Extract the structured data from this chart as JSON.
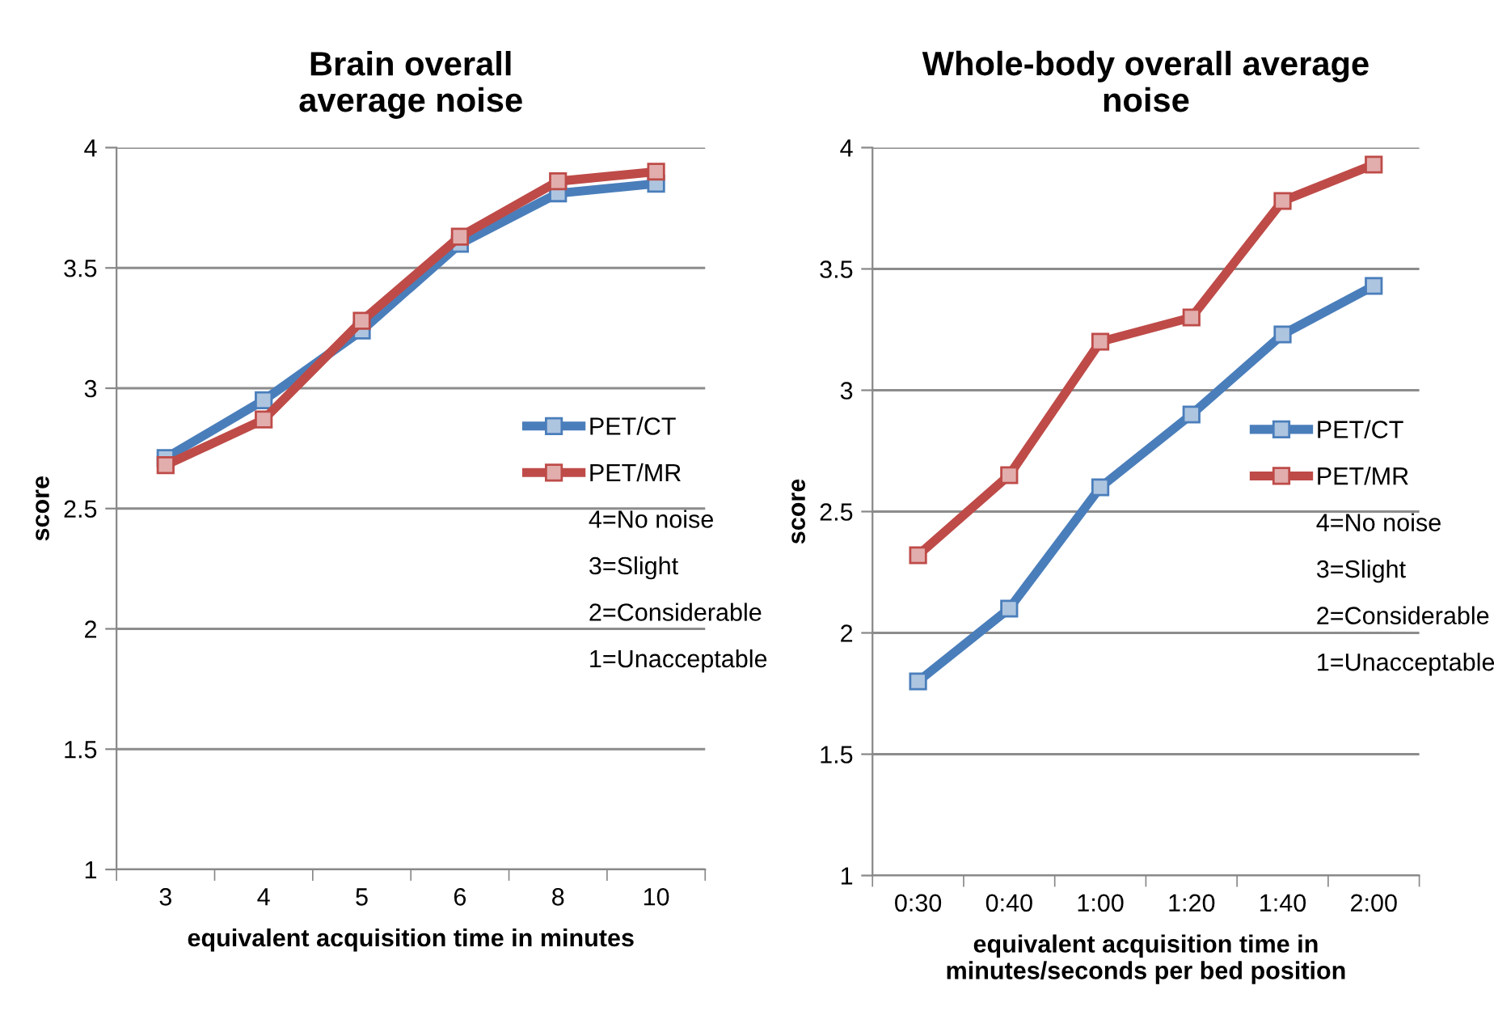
{
  "chart_data": [
    {
      "type": "line",
      "title": "Brain overall\naverage noise",
      "xlabel": "equivalent acquisition time in minutes",
      "ylabel": "score",
      "categories": [
        "3",
        "4",
        "5",
        "6",
        "8",
        "10"
      ],
      "series": [
        {
          "name": "PET/CT",
          "color": "#4a7ebb",
          "values": [
            2.71,
            2.95,
            3.24,
            3.6,
            3.81,
            3.85
          ]
        },
        {
          "name": "PET/MR",
          "color": "#be4b48",
          "values": [
            2.68,
            2.87,
            3.28,
            3.63,
            3.86,
            3.9
          ]
        }
      ],
      "ylim": [
        1,
        4
      ],
      "yticks": [
        1,
        1.5,
        2,
        2.5,
        3,
        3.5,
        4
      ],
      "grid": "y",
      "legend": "right",
      "marker": "square",
      "line_style": "solid",
      "annotations": [
        "4=No noise",
        "3=Slight",
        "2=Considerable",
        "1=Unacceptable"
      ]
    },
    {
      "type": "line",
      "title": "Whole-body overall average\nnoise",
      "xlabel": "equivalent acquisition time in\nminutes/seconds per bed position",
      "ylabel": "score",
      "categories": [
        "0:30",
        "0:40",
        "1:00",
        "1:20",
        "1:40",
        "2:00"
      ],
      "series": [
        {
          "name": "PET/CT",
          "color": "#4a7ebb",
          "values": [
            1.8,
            2.1,
            2.6,
            2.9,
            3.23,
            3.43
          ]
        },
        {
          "name": "PET/MR",
          "color": "#be4b48",
          "values": [
            2.32,
            2.65,
            3.2,
            3.3,
            3.78,
            3.93
          ]
        }
      ],
      "ylim": [
        1,
        4
      ],
      "yticks": [
        1,
        1.5,
        2,
        2.5,
        3,
        3.5,
        4
      ],
      "grid": "y",
      "legend": "right",
      "marker": "square",
      "line_style": "solid",
      "annotations": [
        "4=No noise",
        "3=Slight",
        "2=Considerable",
        "1=Unacceptable"
      ]
    }
  ]
}
